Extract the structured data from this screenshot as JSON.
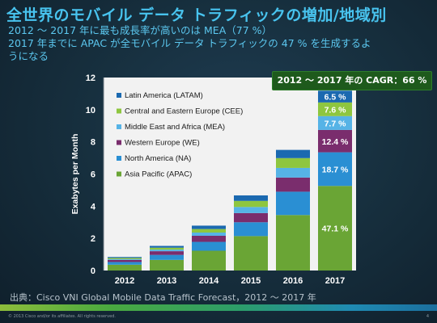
{
  "slide": {
    "title": "全世界のモバイル データ トラフィックの増加/地域別",
    "subtitle_lines": [
      "2012 ～ 2017 年に最も成長率が高いのは MEA（77 %）",
      "2017 年までに APAC が全モバイル データ トラフィックの 47 % を生成するよ",
      "うになる"
    ],
    "cagr_label": "2012 ～ 2017 年の CAGR：66 %",
    "source": "出典：Cisco VNI Global Mobile Data Traffic Forecast，2012 ～ 2017 年",
    "copyright": "© 2013 Cisco and/or its affiliates. All rights reserved.",
    "page_number": "4"
  },
  "chart_data": {
    "type": "bar",
    "stacked": true,
    "categories": [
      "2012",
      "2013",
      "2014",
      "2015",
      "2016",
      "2017"
    ],
    "ylabel": "Exabytes per Month",
    "xlabel": "",
    "ylim": [
      0,
      12
    ],
    "yticks": [
      0,
      2,
      4,
      6,
      8,
      10,
      12
    ],
    "legend_position": "top-left",
    "series": [
      {
        "name": "Asia Pacific (APAC)",
        "color": "#6aa535",
        "values": [
          0.36,
          0.66,
          1.23,
          2.14,
          3.45,
          5.26
        ]
      },
      {
        "name": "North America (NA)",
        "color": "#2a8fd3",
        "values": [
          0.17,
          0.31,
          0.55,
          0.86,
          1.45,
          2.09
        ]
      },
      {
        "name": "Western Europe (WE)",
        "color": "#7a2d6d",
        "values": [
          0.13,
          0.23,
          0.38,
          0.57,
          0.88,
          1.39
        ]
      },
      {
        "name": "Middle East and Africa (MEA)",
        "color": "#56b3e6",
        "values": [
          0.05,
          0.1,
          0.2,
          0.38,
          0.6,
          0.86
        ]
      },
      {
        "name": "Central and Eastern Europe (CEE)",
        "color": "#8ec63f",
        "values": [
          0.07,
          0.12,
          0.22,
          0.38,
          0.61,
          0.85
        ]
      },
      {
        "name": "Latin America (LATAM)",
        "color": "#1b69b0",
        "values": [
          0.06,
          0.11,
          0.21,
          0.34,
          0.51,
          0.73
        ]
      }
    ],
    "annotations_2017": [
      {
        "series": "Asia Pacific (APAC)",
        "label": "47.1 %"
      },
      {
        "series": "North America (NA)",
        "label": "18.7 %"
      },
      {
        "series": "Western Europe (WE)",
        "label": "12.4 %"
      },
      {
        "series": "Middle East and Africa (MEA)",
        "label": "7.7 %"
      },
      {
        "series": "Central and Eastern Europe (CEE)",
        "label": "7.6 %"
      },
      {
        "series": "Latin America (LATAM)",
        "label": "6.5 %"
      }
    ]
  }
}
